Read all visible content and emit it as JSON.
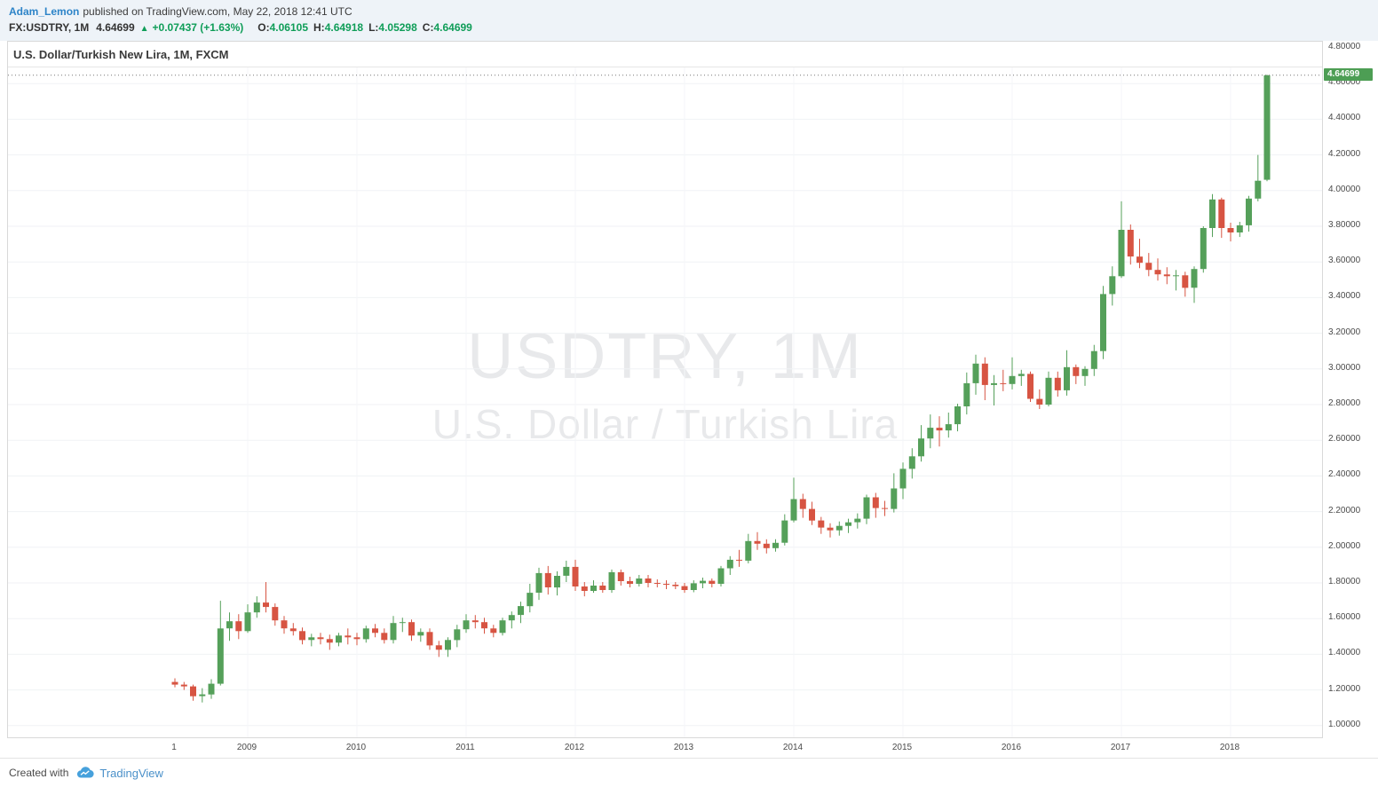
{
  "header": {
    "author": "Adam_Lemon",
    "published_text": "published on TradingView.com, May 22, 2018 12:41 UTC",
    "quote": {
      "symbol": "FX:USDTRY, 1M",
      "last": "4.64699",
      "direction_arrow": "▲",
      "change": "+0.07437 (+1.63%)",
      "o_label": "O:",
      "o_value": "4.06105",
      "h_label": "H:",
      "h_value": "4.64918",
      "l_label": "L:",
      "l_value": "4.05298",
      "c_label": "C:",
      "c_value": "4.64699"
    }
  },
  "chart": {
    "legend": "U.S. Dollar/Turkish New Lira, 1M, FXCM",
    "watermark_title": "USDTRY, 1M",
    "watermark_subtitle": "U.S. Dollar / Turkish Lira",
    "last_price_label": "4.64699",
    "colors": {
      "up": "#55a05a",
      "down": "#d75442",
      "badge": "#4d9e54",
      "grid": "#f0f2f5",
      "vgrid": "#f4f6f8",
      "price_line": "#777777"
    }
  },
  "footer": {
    "created_with": "Created with",
    "brand": "TradingView"
  },
  "chart_data": {
    "type": "candlestick",
    "title": "U.S. Dollar/Turkish New Lira, 1M, FXCM",
    "symbol": "USDTRY",
    "timeframe": "1M",
    "exchange": "FXCM",
    "last_price": 4.64699,
    "y_axis": {
      "min": 1.0,
      "max": 4.8,
      "tick_step": 0.2,
      "tick_decimals": 5
    },
    "x_labels": [
      {
        "index": 0,
        "label": "1"
      },
      {
        "index": 8,
        "label": "2009"
      },
      {
        "index": 20,
        "label": "2010"
      },
      {
        "index": 32,
        "label": "2011"
      },
      {
        "index": 44,
        "label": "2012"
      },
      {
        "index": 56,
        "label": "2013"
      },
      {
        "index": 68,
        "label": "2014"
      },
      {
        "index": 80,
        "label": "2015"
      },
      {
        "index": 92,
        "label": "2016"
      },
      {
        "index": 104,
        "label": "2017"
      },
      {
        "index": 116,
        "label": "2018"
      }
    ],
    "candles": [
      [
        "2008-05",
        1.245,
        1.265,
        1.215,
        1.23
      ],
      [
        "2008-06",
        1.23,
        1.245,
        1.2,
        1.22
      ],
      [
        "2008-07",
        1.22,
        1.23,
        1.14,
        1.165
      ],
      [
        "2008-08",
        1.165,
        1.21,
        1.13,
        1.175
      ],
      [
        "2008-09",
        1.175,
        1.26,
        1.15,
        1.235
      ],
      [
        "2008-10",
        1.235,
        1.7,
        1.225,
        1.545
      ],
      [
        "2008-11",
        1.545,
        1.635,
        1.475,
        1.585
      ],
      [
        "2008-12",
        1.585,
        1.625,
        1.485,
        1.53
      ],
      [
        "2009-01",
        1.53,
        1.68,
        1.52,
        1.635
      ],
      [
        "2009-02",
        1.635,
        1.725,
        1.605,
        1.69
      ],
      [
        "2009-03",
        1.69,
        1.805,
        1.635,
        1.665
      ],
      [
        "2009-04",
        1.665,
        1.685,
        1.56,
        1.59
      ],
      [
        "2009-05",
        1.59,
        1.615,
        1.515,
        1.545
      ],
      [
        "2009-06",
        1.545,
        1.575,
        1.505,
        1.53
      ],
      [
        "2009-07",
        1.53,
        1.55,
        1.455,
        1.48
      ],
      [
        "2009-08",
        1.48,
        1.515,
        1.445,
        1.495
      ],
      [
        "2009-09",
        1.495,
        1.52,
        1.455,
        1.485
      ],
      [
        "2009-10",
        1.485,
        1.51,
        1.425,
        1.465
      ],
      [
        "2009-11",
        1.465,
        1.52,
        1.445,
        1.505
      ],
      [
        "2009-12",
        1.505,
        1.545,
        1.455,
        1.495
      ],
      [
        "2010-01",
        1.495,
        1.52,
        1.45,
        1.485
      ],
      [
        "2010-02",
        1.485,
        1.56,
        1.465,
        1.545
      ],
      [
        "2010-03",
        1.545,
        1.57,
        1.495,
        1.52
      ],
      [
        "2010-04",
        1.52,
        1.545,
        1.46,
        1.48
      ],
      [
        "2010-05",
        1.48,
        1.615,
        1.46,
        1.575
      ],
      [
        "2010-06",
        1.575,
        1.605,
        1.525,
        1.58
      ],
      [
        "2010-07",
        1.58,
        1.595,
        1.475,
        1.505
      ],
      [
        "2010-08",
        1.505,
        1.545,
        1.47,
        1.525
      ],
      [
        "2010-09",
        1.525,
        1.545,
        1.425,
        1.45
      ],
      [
        "2010-10",
        1.45,
        1.475,
        1.385,
        1.425
      ],
      [
        "2010-11",
        1.425,
        1.495,
        1.385,
        1.48
      ],
      [
        "2010-12",
        1.48,
        1.565,
        1.44,
        1.54
      ],
      [
        "2011-01",
        1.54,
        1.625,
        1.52,
        1.59
      ],
      [
        "2011-02",
        1.59,
        1.62,
        1.545,
        1.58
      ],
      [
        "2011-03",
        1.58,
        1.605,
        1.515,
        1.545
      ],
      [
        "2011-04",
        1.545,
        1.565,
        1.495,
        1.52
      ],
      [
        "2011-05",
        1.52,
        1.605,
        1.505,
        1.59
      ],
      [
        "2011-06",
        1.59,
        1.64,
        1.545,
        1.62
      ],
      [
        "2011-07",
        1.62,
        1.695,
        1.575,
        1.67
      ],
      [
        "2011-08",
        1.67,
        1.795,
        1.635,
        1.745
      ],
      [
        "2011-09",
        1.745,
        1.885,
        1.705,
        1.855
      ],
      [
        "2011-10",
        1.855,
        1.895,
        1.735,
        1.775
      ],
      [
        "2011-11",
        1.775,
        1.865,
        1.73,
        1.84
      ],
      [
        "2011-12",
        1.84,
        1.925,
        1.805,
        1.89
      ],
      [
        "2012-01",
        1.89,
        1.93,
        1.755,
        1.78
      ],
      [
        "2012-02",
        1.78,
        1.805,
        1.725,
        1.755
      ],
      [
        "2012-03",
        1.755,
        1.815,
        1.745,
        1.785
      ],
      [
        "2012-04",
        1.785,
        1.805,
        1.745,
        1.76
      ],
      [
        "2012-05",
        1.76,
        1.875,
        1.745,
        1.86
      ],
      [
        "2012-06",
        1.86,
        1.875,
        1.785,
        1.81
      ],
      [
        "2012-07",
        1.81,
        1.835,
        1.775,
        1.795
      ],
      [
        "2012-08",
        1.795,
        1.845,
        1.78,
        1.825
      ],
      [
        "2012-09",
        1.825,
        1.845,
        1.775,
        1.8
      ],
      [
        "2012-10",
        1.8,
        1.82,
        1.775,
        1.795
      ],
      [
        "2012-11",
        1.795,
        1.815,
        1.765,
        1.79
      ],
      [
        "2012-12",
        1.79,
        1.805,
        1.765,
        1.782
      ],
      [
        "2013-01",
        1.782,
        1.8,
        1.745,
        1.76
      ],
      [
        "2013-02",
        1.76,
        1.815,
        1.748,
        1.798
      ],
      [
        "2013-03",
        1.798,
        1.83,
        1.77,
        1.812
      ],
      [
        "2013-04",
        1.812,
        1.825,
        1.775,
        1.795
      ],
      [
        "2013-05",
        1.795,
        1.895,
        1.78,
        1.882
      ],
      [
        "2013-06",
        1.882,
        1.95,
        1.845,
        1.93
      ],
      [
        "2013-07",
        1.93,
        1.985,
        1.89,
        1.925
      ],
      [
        "2013-08",
        1.925,
        2.075,
        1.91,
        2.035
      ],
      [
        "2013-09",
        2.035,
        2.085,
        1.985,
        2.02
      ],
      [
        "2013-10",
        2.02,
        2.045,
        1.965,
        1.995
      ],
      [
        "2013-11",
        1.995,
        2.045,
        1.975,
        2.025
      ],
      [
        "2013-12",
        2.025,
        2.185,
        2.01,
        2.15
      ],
      [
        "2014-01",
        2.15,
        2.39,
        2.14,
        2.27
      ],
      [
        "2014-02",
        2.27,
        2.3,
        2.165,
        2.215
      ],
      [
        "2014-03",
        2.215,
        2.255,
        2.125,
        2.15
      ],
      [
        "2014-04",
        2.15,
        2.17,
        2.075,
        2.11
      ],
      [
        "2014-05",
        2.11,
        2.135,
        2.055,
        2.095
      ],
      [
        "2014-06",
        2.095,
        2.145,
        2.065,
        2.12
      ],
      [
        "2014-07",
        2.12,
        2.16,
        2.08,
        2.14
      ],
      [
        "2014-08",
        2.14,
        2.19,
        2.105,
        2.16
      ],
      [
        "2014-09",
        2.16,
        2.295,
        2.13,
        2.28
      ],
      [
        "2014-10",
        2.28,
        2.305,
        2.165,
        2.22
      ],
      [
        "2014-11",
        2.22,
        2.26,
        2.175,
        2.215
      ],
      [
        "2014-12",
        2.215,
        2.415,
        2.195,
        2.33
      ],
      [
        "2015-01",
        2.33,
        2.475,
        2.27,
        2.44
      ],
      [
        "2015-02",
        2.44,
        2.555,
        2.385,
        2.51
      ],
      [
        "2015-03",
        2.51,
        2.685,
        2.48,
        2.61
      ],
      [
        "2015-04",
        2.61,
        2.745,
        2.555,
        2.67
      ],
      [
        "2015-05",
        2.67,
        2.735,
        2.565,
        2.655
      ],
      [
        "2015-06",
        2.655,
        2.755,
        2.615,
        2.69
      ],
      [
        "2015-07",
        2.69,
        2.805,
        2.65,
        2.79
      ],
      [
        "2015-08",
        2.79,
        2.98,
        2.745,
        2.92
      ],
      [
        "2015-09",
        2.92,
        3.08,
        2.855,
        3.03
      ],
      [
        "2015-10",
        3.03,
        3.065,
        2.825,
        2.91
      ],
      [
        "2015-11",
        2.91,
        2.965,
        2.795,
        2.92
      ],
      [
        "2015-12",
        2.92,
        2.995,
        2.875,
        2.915
      ],
      [
        "2016-01",
        2.915,
        3.065,
        2.885,
        2.96
      ],
      [
        "2016-02",
        2.96,
        2.995,
        2.905,
        2.972
      ],
      [
        "2016-03",
        2.972,
        2.985,
        2.815,
        2.832
      ],
      [
        "2016-04",
        2.832,
        2.885,
        2.775,
        2.8
      ],
      [
        "2016-05",
        2.8,
        2.985,
        2.79,
        2.95
      ],
      [
        "2016-06",
        2.95,
        2.985,
        2.845,
        2.88
      ],
      [
        "2016-07",
        2.88,
        3.105,
        2.85,
        3.01
      ],
      [
        "2016-08",
        3.01,
        3.025,
        2.915,
        2.96
      ],
      [
        "2016-09",
        2.96,
        3.015,
        2.905,
        3.0
      ],
      [
        "2016-10",
        3.0,
        3.135,
        2.96,
        3.1
      ],
      [
        "2016-11",
        3.1,
        3.465,
        3.055,
        3.42
      ],
      [
        "2016-12",
        3.42,
        3.575,
        3.355,
        3.52
      ],
      [
        "2017-01",
        3.52,
        3.94,
        3.51,
        3.78
      ],
      [
        "2017-02",
        3.78,
        3.81,
        3.585,
        3.63
      ],
      [
        "2017-03",
        3.63,
        3.73,
        3.565,
        3.595
      ],
      [
        "2017-04",
        3.595,
        3.65,
        3.52,
        3.555
      ],
      [
        "2017-05",
        3.555,
        3.62,
        3.495,
        3.53
      ],
      [
        "2017-06",
        3.53,
        3.57,
        3.475,
        3.52
      ],
      [
        "2017-07",
        3.52,
        3.555,
        3.44,
        3.525
      ],
      [
        "2017-08",
        3.525,
        3.545,
        3.405,
        3.455
      ],
      [
        "2017-09",
        3.455,
        3.575,
        3.37,
        3.56
      ],
      [
        "2017-10",
        3.56,
        3.8,
        3.54,
        3.79
      ],
      [
        "2017-11",
        3.79,
        3.98,
        3.74,
        3.95
      ],
      [
        "2017-12",
        3.95,
        3.96,
        3.735,
        3.79
      ],
      [
        "2018-01",
        3.79,
        3.82,
        3.715,
        3.765
      ],
      [
        "2018-02",
        3.765,
        3.825,
        3.74,
        3.805
      ],
      [
        "2018-03",
        3.805,
        3.97,
        3.77,
        3.955
      ],
      [
        "2018-04",
        3.955,
        4.2,
        3.94,
        4.055
      ],
      [
        "2018-05",
        4.06105,
        4.64918,
        4.05298,
        4.64699
      ]
    ]
  }
}
